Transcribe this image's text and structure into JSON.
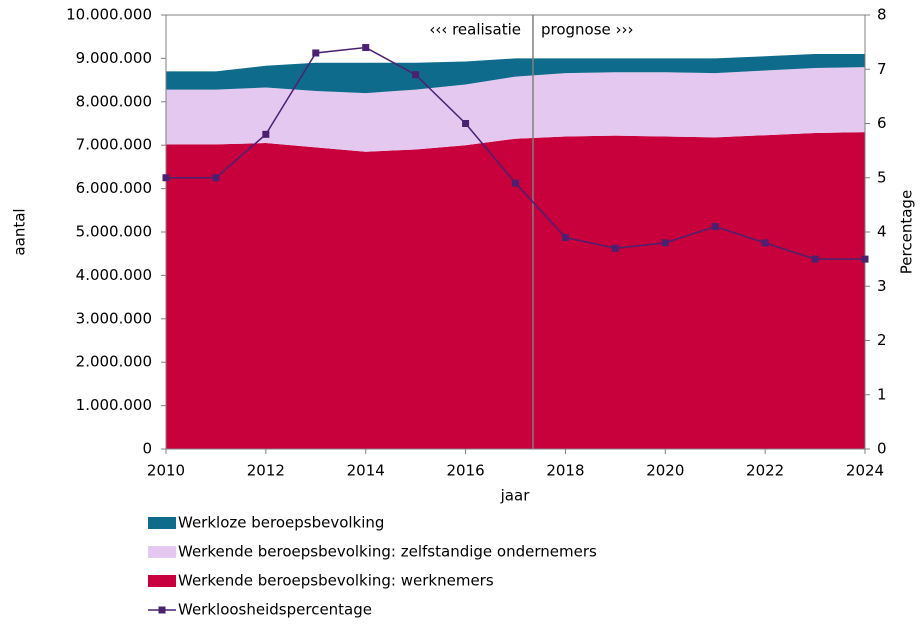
{
  "chart_data": {
    "type": "stacked_area_line",
    "x": [
      2010,
      2011,
      2012,
      2013,
      2014,
      2015,
      2016,
      2017,
      2018,
      2019,
      2020,
      2021,
      2022,
      2023,
      2024
    ],
    "xlim": [
      2010,
      2024
    ],
    "xticks": [
      2010,
      2012,
      2014,
      2016,
      2018,
      2020,
      2022,
      2024
    ],
    "ylim": [
      0,
      10000000
    ],
    "yticks": [
      {
        "value": 0,
        "label": "0"
      },
      {
        "value": 1000000,
        "label": "1.000.000"
      },
      {
        "value": 2000000,
        "label": "2.000.000"
      },
      {
        "value": 3000000,
        "label": "3.000.000"
      },
      {
        "value": 4000000,
        "label": "4.000.000"
      },
      {
        "value": 5000000,
        "label": "5.000.000"
      },
      {
        "value": 6000000,
        "label": "6.000.000"
      },
      {
        "value": 7000000,
        "label": "7.000.000"
      },
      {
        "value": 8000000,
        "label": "8.000.000"
      },
      {
        "value": 9000000,
        "label": "9.000.000"
      },
      {
        "value": 10000000,
        "label": "10.000.000"
      }
    ],
    "y2lim": [
      0,
      8
    ],
    "y2ticks": [
      0,
      1,
      2,
      3,
      4,
      5,
      6,
      7,
      8
    ],
    "xlabel": "jaar",
    "ylabel": "aantal",
    "y2label": "Percentage",
    "annotations": {
      "left": "‹‹‹ realisatie",
      "right": "prognose ›››",
      "divider": 2017.35
    },
    "series": [
      {
        "name": "Werkende beroepsbevolking: werknemers",
        "color": "#c8003c",
        "values": [
          7020000,
          7020000,
          7050000,
          6950000,
          6850000,
          6900000,
          7000000,
          7150000,
          7200000,
          7220000,
          7200000,
          7180000,
          7230000,
          7280000,
          7300000
        ]
      },
      {
        "name": "Werkende beroepsbevolking: zelfstandige ondernemers",
        "color": "#e5c8f0",
        "values": [
          1260000,
          1260000,
          1280000,
          1300000,
          1350000,
          1380000,
          1400000,
          1430000,
          1460000,
          1460000,
          1480000,
          1480000,
          1490000,
          1500000,
          1500000
        ]
      },
      {
        "name": "Werkloze beroepsbevolking",
        "color": "#0f6b8c",
        "values": [
          420000,
          420000,
          500000,
          650000,
          700000,
          620000,
          530000,
          420000,
          340000,
          320000,
          320000,
          340000,
          330000,
          320000,
          300000
        ]
      },
      {
        "name": "Werkloosheidspercentage",
        "color": "#4b2070",
        "axis": "y2",
        "values": [
          5.0,
          5.0,
          5.8,
          7.3,
          7.4,
          6.9,
          6.0,
          4.9,
          3.9,
          3.7,
          3.8,
          4.1,
          3.8,
          3.5,
          3.5
        ]
      }
    ]
  }
}
